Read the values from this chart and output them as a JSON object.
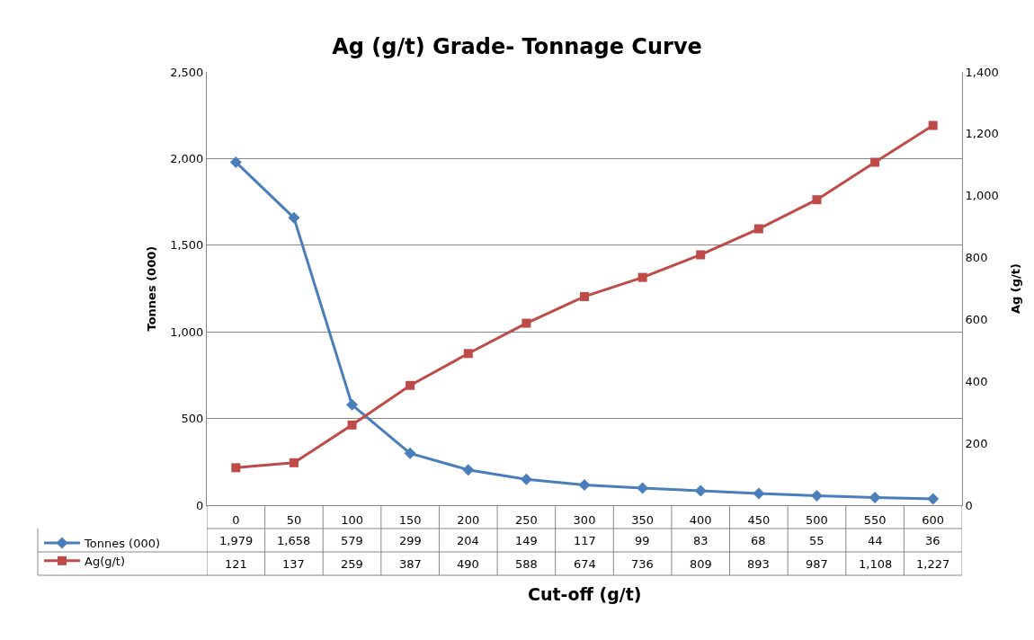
{
  "chart_data": {
    "type": "line",
    "title": "Ag (g/t) Grade- Tonnage Curve",
    "xlabel": "Cut-off (g/t)",
    "ylabel": "Tonnes (000)",
    "y2label": "Ag (g/t)",
    "categories": [
      "0",
      "50",
      "100",
      "150",
      "200",
      "250",
      "300",
      "350",
      "400",
      "450",
      "500",
      "550",
      "600"
    ],
    "series": [
      {
        "name": "Tonnes (000)",
        "color": "#4a7ebb",
        "marker": "diamond",
        "values": [
          1979,
          1658,
          579,
          299,
          204,
          149,
          117,
          99,
          83,
          68,
          55,
          44,
          36
        ],
        "value_labels": [
          "1,979",
          "1,658",
          "579",
          "299",
          "204",
          "149",
          "117",
          "99",
          "83",
          "68",
          "55",
          "44",
          "36"
        ]
      },
      {
        "name": "Ag(g/t)",
        "color": "#be4b48",
        "marker": "square",
        "axis": "y2",
        "values": [
          121,
          137,
          259,
          387,
          490,
          588,
          674,
          736,
          809,
          893,
          987,
          1108,
          1227
        ],
        "value_labels": [
          "121",
          "137",
          "259",
          "387",
          "490",
          "588",
          "674",
          "736",
          "809",
          "893",
          "987",
          "1,108",
          "1,227"
        ]
      }
    ],
    "ylim": [
      0,
      2500
    ],
    "yticks": [
      0,
      500,
      {
        "value": 1000,
        "label": "1,000"
      },
      {
        "value": 1500,
        "label": "1,500"
      },
      {
        "value": 2000,
        "label": "2,000"
      },
      {
        "value": 2500,
        "label": "2,500"
      }
    ],
    "y2lim": [
      0,
      1400
    ],
    "y2ticks": [
      0,
      200,
      400,
      600,
      800,
      {
        "value": 1000,
        "label": "1,000"
      },
      {
        "value": 1200,
        "label": "1,200"
      },
      {
        "value": 1400,
        "label": "1,400"
      }
    ],
    "grid": "y",
    "legend": "bottom left",
    "line_style": "solid"
  }
}
